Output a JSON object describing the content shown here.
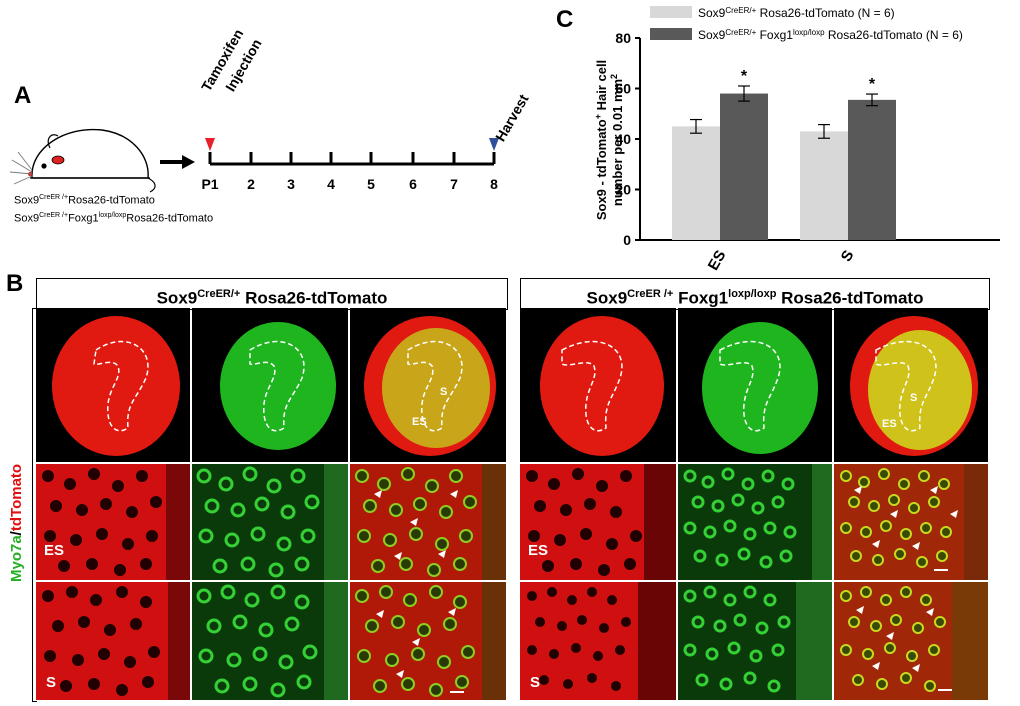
{
  "panel_a": {
    "letter": "A",
    "mouse_label_1": "Sox9",
    "mouse_label_1_sup": "CreER /+",
    "mouse_label_1_tail": "Rosa26-tdTomato",
    "mouse_label_2": "Sox9",
    "mouse_label_2_sup": "CreER /+",
    "mouse_label_2_mid": "Foxg1",
    "mouse_label_2_sup2": "loxp/loxp",
    "mouse_label_2_tail": "Rosa26-tdTomato",
    "timeline_days": [
      "P1",
      "2",
      "3",
      "4",
      "5",
      "6",
      "7",
      "8"
    ],
    "tamoxifen_label": "Tamoxifen",
    "injection_label": "Injection",
    "harvest_label": "Harvest",
    "tamoxifen_color": "#e8202a",
    "harvest_color": "#2f4f9a"
  },
  "panel_b": {
    "letter": "B",
    "side_label_green": "Myo7a",
    "side_label_sep": "/",
    "side_label_red": "tdTomato",
    "left_header": {
      "gene": "Sox9",
      "sup": "CreER/+",
      "tail": " Rosa26-tdTomato"
    },
    "right_header": {
      "gene": "Sox9",
      "sup": "CreER /+",
      "mid": " Foxg1",
      "sup2": "loxp/loxp",
      "tail": " Rosa26-tdTomato"
    },
    "region_es": "ES",
    "region_s": "S",
    "overlay_s": "S",
    "overlay_es": "ES"
  },
  "chart_data": {
    "type": "bar",
    "panel_letter": "C",
    "categories": [
      "ES",
      "S"
    ],
    "series": [
      {
        "name": "Sox9 CreER/+ Rosa26-tdTomato (N = 6)",
        "legend_main": "Sox9",
        "legend_sup": "CreER/+",
        "legend_tail": " Rosa26-tdTomato (N = 6)",
        "values": [
          45,
          43
        ],
        "errors": [
          2.7,
          2.7
        ],
        "color": "#d8d8d8"
      },
      {
        "name": "Sox9 CreER/+ Foxg1 loxp/loxp Rosa26-tdTomato (N = 6)",
        "legend_main": "Sox9",
        "legend_sup": "CreER/+",
        "legend_mid": " Foxg1",
        "legend_sup2": "loxp/loxp",
        "legend_tail": " Rosa26-tdTomato (N = 6)",
        "values": [
          58,
          55.5
        ],
        "errors": [
          3,
          2.3
        ],
        "color": "#595959"
      }
    ],
    "significance": [
      "*",
      "*"
    ],
    "ylabel_line1": "Sox9 - tdTomato",
    "ylabel_line1_sup": "+",
    "ylabel_line1_tail": " Hair cell",
    "ylabel_line2": "number per 0.01 mm",
    "ylabel_line2_sup": "2",
    "ylim": [
      0,
      80
    ],
    "yticks": [
      0,
      20,
      40,
      60,
      80
    ]
  }
}
